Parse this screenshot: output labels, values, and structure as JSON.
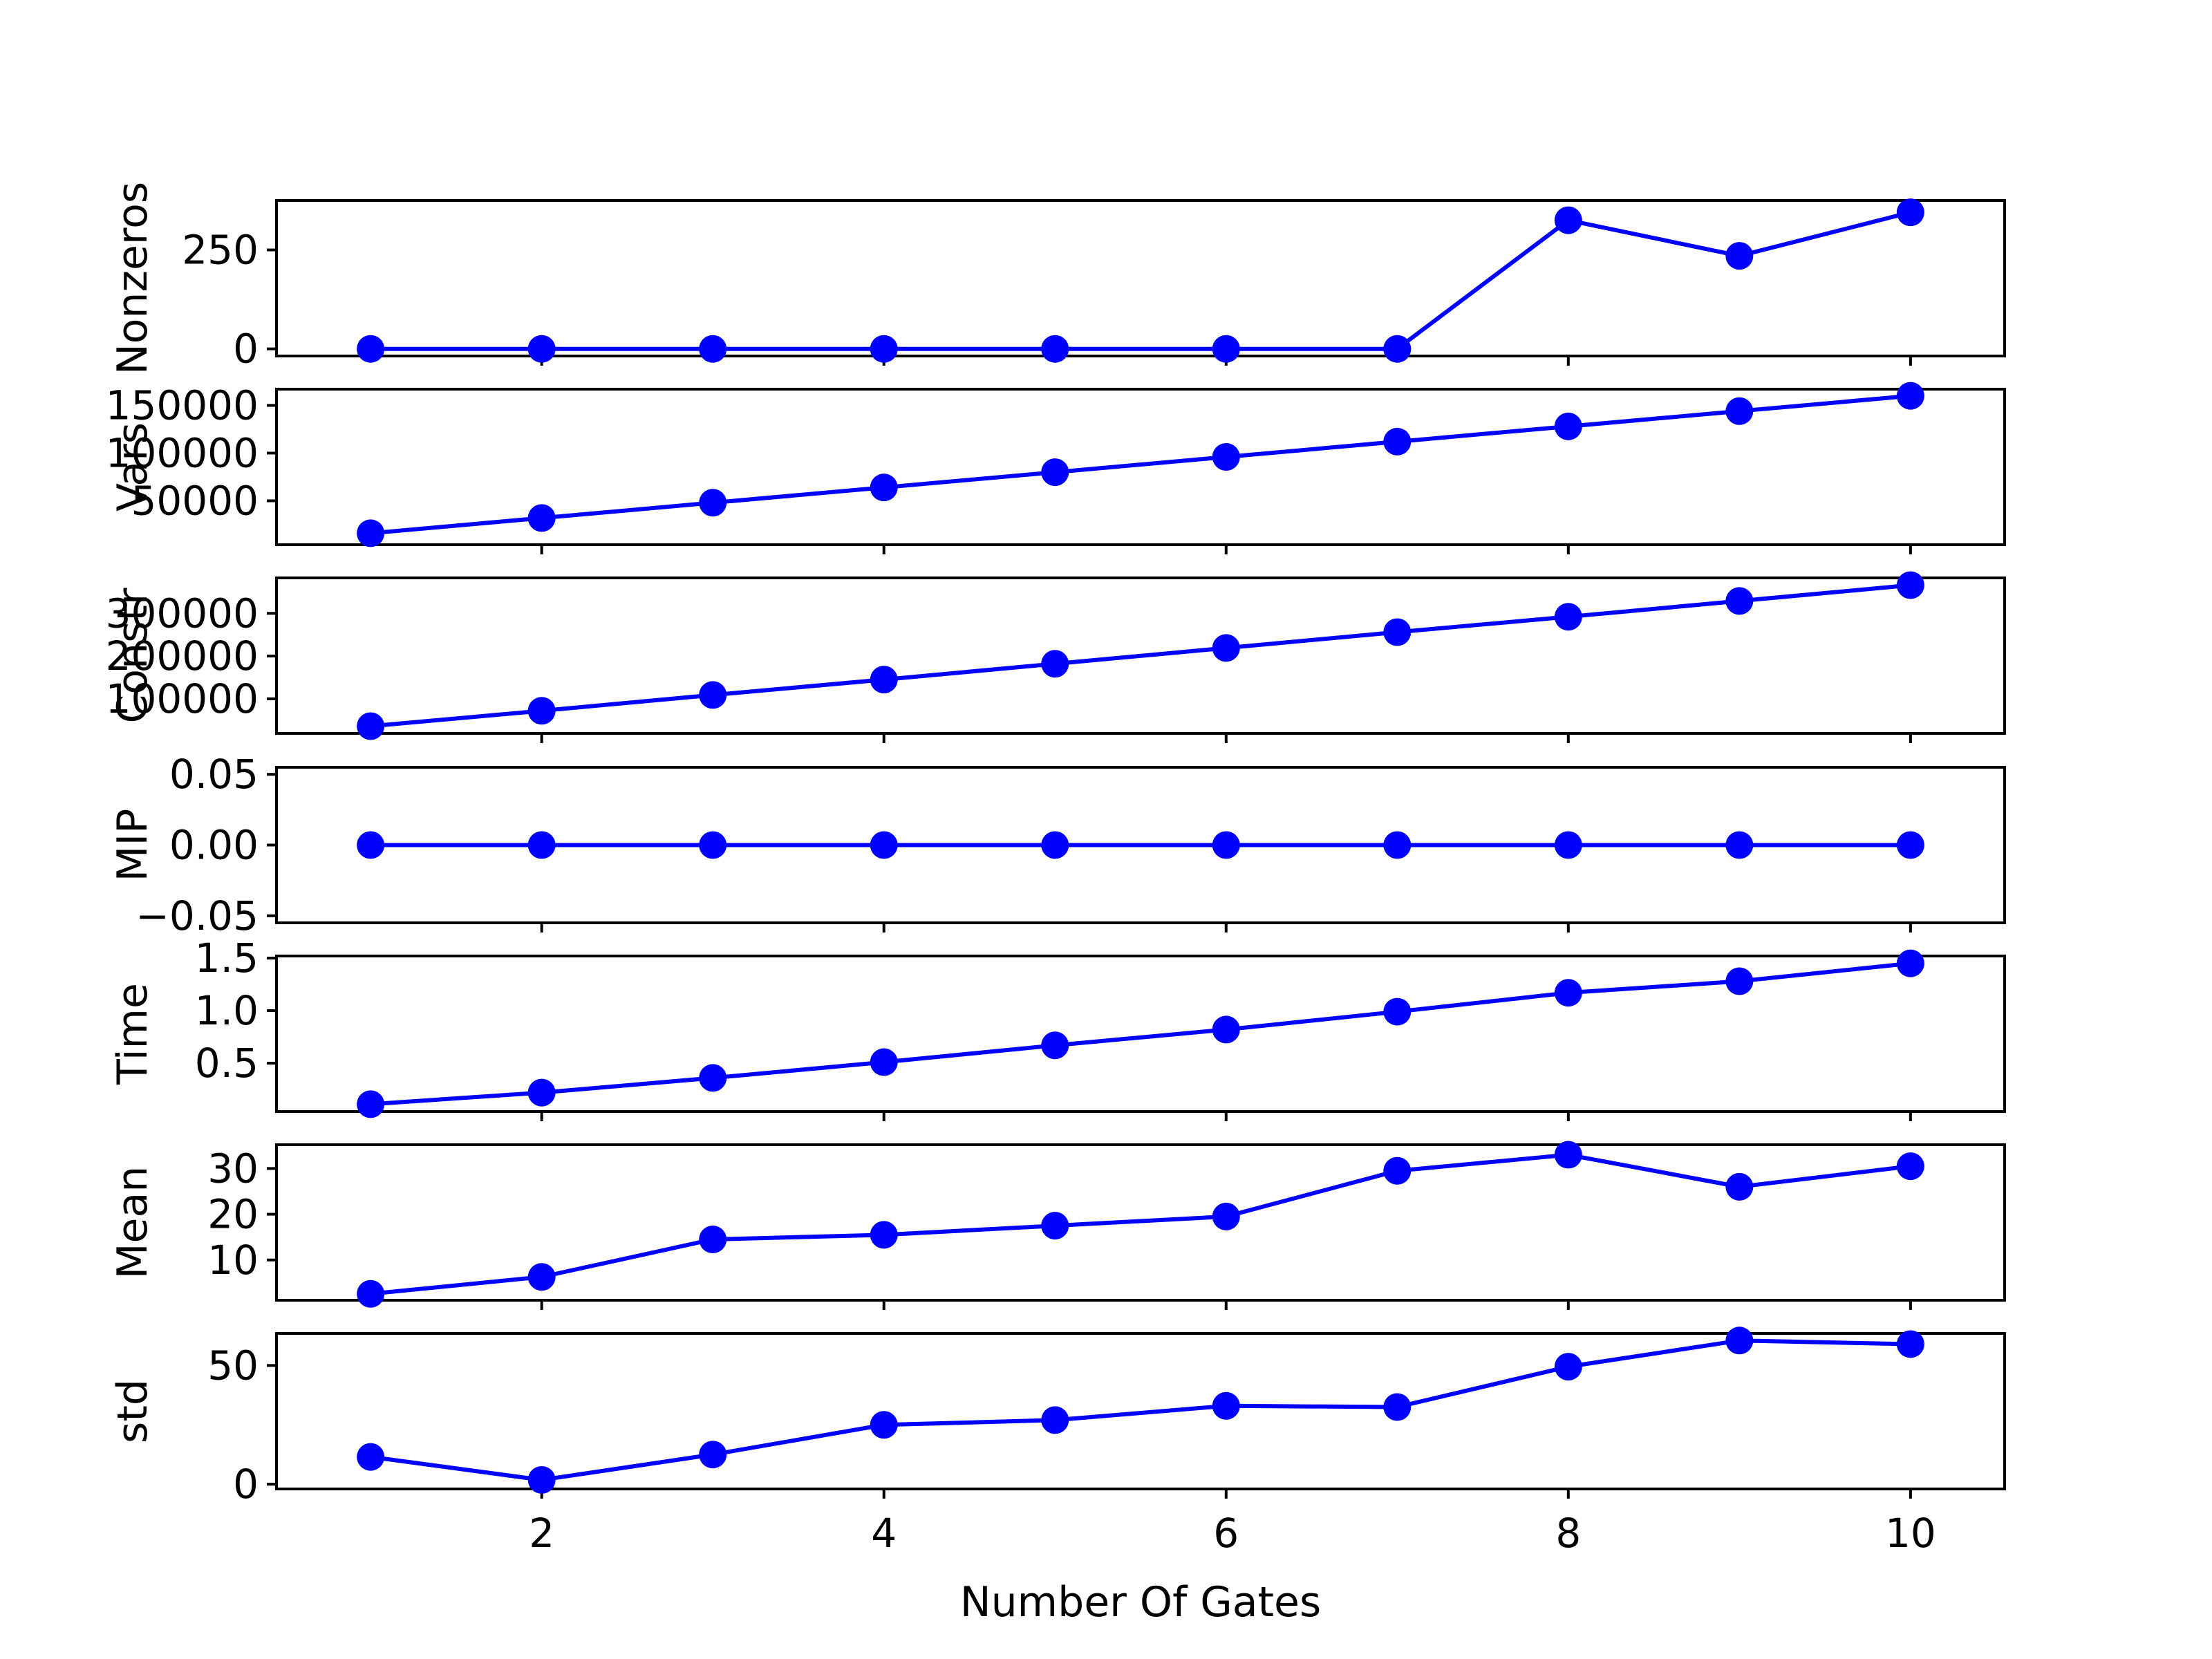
{
  "chart_data": {
    "type": "line",
    "layout": "stacked-subplots-shared-x",
    "xlabel": "Number Of Gates",
    "x": [
      1,
      2,
      3,
      4,
      5,
      6,
      7,
      8,
      9,
      10
    ],
    "x_ticks": [
      2,
      4,
      6,
      8,
      10
    ],
    "x_tick_labels": [
      "2",
      "4",
      "6",
      "8",
      "10"
    ],
    "xlim": [
      0.45,
      10.55
    ],
    "line_color": "#0000ff",
    "marker": "circle",
    "grid": false,
    "legend": "none",
    "panels": [
      {
        "ylabel": "Nonzeros",
        "ylim": [
          -18,
          375
        ],
        "y_ticks": [
          0,
          250
        ],
        "y_tick_labels": [
          "0",
          "250"
        ],
        "values": [
          0,
          0,
          0,
          0,
          0,
          0,
          0,
          325,
          235,
          345
        ]
      },
      {
        "ylabel": "Vars",
        "ylim": [
          4000,
          167000
        ],
        "y_ticks": [
          50000,
          100000,
          150000
        ],
        "y_tick_labels": [
          "50000",
          "100000",
          "150000"
        ],
        "values": [
          16000,
          32000,
          48000,
          64000,
          80000,
          96000,
          112000,
          128000,
          144000,
          160000
        ]
      },
      {
        "ylabel": "Constr",
        "ylim": [
          19000,
          383000
        ],
        "y_ticks": [
          100000,
          200000,
          300000
        ],
        "y_tick_labels": [
          "100000",
          "200000",
          "300000"
        ],
        "values": [
          36000,
          72000,
          109000,
          145000,
          182000,
          219000,
          256000,
          292000,
          329000,
          366000
        ]
      },
      {
        "ylabel": "MIP",
        "ylim": [
          -0.055,
          0.055
        ],
        "y_ticks": [
          -0.05,
          0,
          0.05
        ],
        "y_tick_labels": [
          "−0.05",
          "0.00",
          "0.05"
        ],
        "values": [
          0,
          0,
          0,
          0,
          0,
          0,
          0,
          0,
          0,
          0
        ]
      },
      {
        "ylabel": "Time",
        "ylim": [
          0.04,
          1.52
        ],
        "y_ticks": [
          0.5,
          1.0,
          1.5
        ],
        "y_tick_labels": [
          "0.5",
          "1.0",
          "1.5"
        ],
        "values": [
          0.11,
          0.22,
          0.36,
          0.51,
          0.67,
          0.82,
          0.99,
          1.17,
          1.28,
          1.45
        ]
      },
      {
        "ylabel": "Mean",
        "ylim": [
          1.2,
          35.2
        ],
        "y_ticks": [
          10,
          20,
          30
        ],
        "y_tick_labels": [
          "10",
          "20",
          "30"
        ],
        "values": [
          2.6,
          6.3,
          14.5,
          15.5,
          17.5,
          19.5,
          29.5,
          33.0,
          26.0,
          30.5
        ]
      },
      {
        "ylabel": "std",
        "ylim": [
          -2,
          63.5
        ],
        "y_ticks": [
          0,
          50
        ],
        "y_tick_labels": [
          "0",
          "50"
        ],
        "values": [
          11.5,
          1.8,
          12.5,
          25,
          27,
          33,
          32.5,
          49.5,
          60.5,
          59
        ]
      }
    ]
  }
}
